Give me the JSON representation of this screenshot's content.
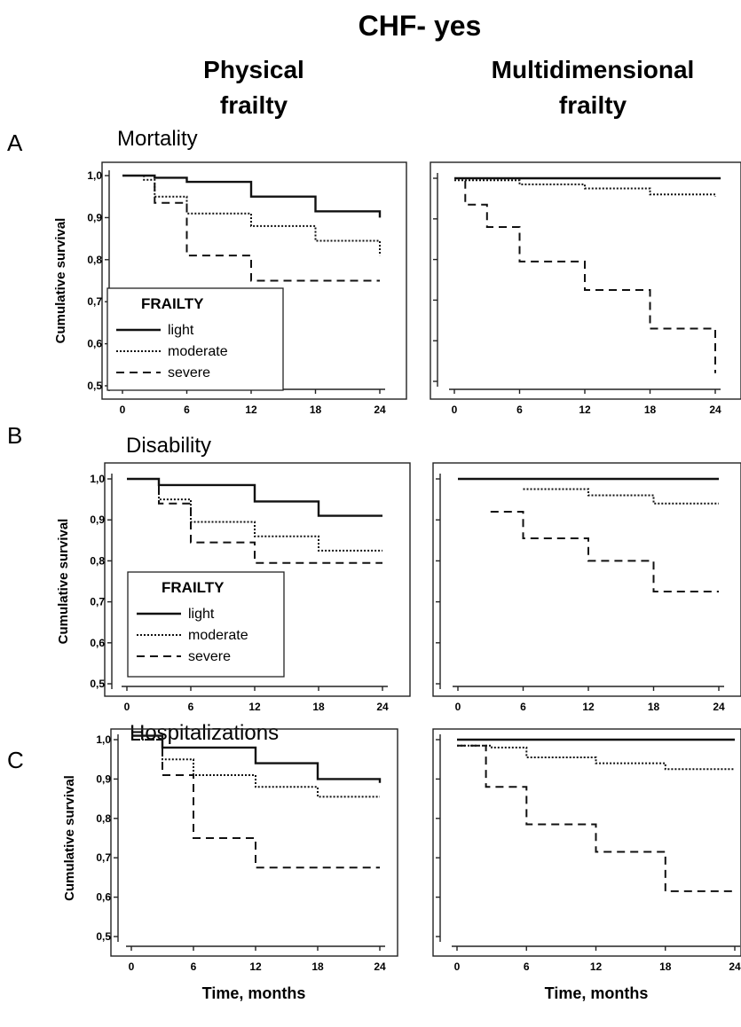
{
  "title": "CHF- yes",
  "columns": [
    {
      "heading": [
        "Physical",
        "frailty"
      ]
    },
    {
      "heading": [
        "Multidimensional",
        "frailty"
      ]
    }
  ],
  "row_labels": [
    {
      "letter": "A",
      "name": "Mortality"
    },
    {
      "letter": "B",
      "name": "Disability"
    },
    {
      "letter": "C",
      "name": "Hospitalizations"
    }
  ],
  "legend": {
    "title": "FRAILTY",
    "items": [
      "light",
      "moderate",
      "severe"
    ]
  },
  "ylabel": "Cumulative survival",
  "xlabel": "Time, months",
  "x_ticks": [
    "0",
    "6",
    "12",
    "18",
    "24"
  ],
  "y_ticks": [
    "0,5",
    "0,6",
    "0,7",
    "0,8",
    "0,9",
    "1,0"
  ],
  "chart_data": [
    {
      "type": "line",
      "title": "Mortality",
      "xlabel": "",
      "ylabel": "Cumulative survival",
      "xlim": [
        0,
        24
      ],
      "ylim": [
        0.5,
        1.0
      ],
      "step": true,
      "legend": "bottom-left",
      "series": [
        {
          "name": "light",
          "style": "solid",
          "x": [
            0,
            3,
            6,
            12,
            18,
            24
          ],
          "y": [
            1.0,
            0.995,
            0.985,
            0.95,
            0.915,
            0.9
          ]
        },
        {
          "name": "moderate",
          "style": "dotted",
          "x": [
            0,
            2,
            3,
            6,
            12,
            18,
            24
          ],
          "y": [
            1.0,
            0.99,
            0.95,
            0.91,
            0.88,
            0.845,
            0.81
          ]
        },
        {
          "name": "severe",
          "style": "dashed",
          "x": [
            0,
            3,
            6,
            12,
            24
          ],
          "y": [
            1.0,
            0.935,
            0.81,
            0.75,
            0.75
          ]
        }
      ]
    },
    {
      "type": "line",
      "title": "Mortality",
      "xlabel": "",
      "ylabel": "",
      "xlim": [
        0,
        24
      ],
      "ylim": [
        0.5,
        1.0
      ],
      "step": true,
      "series": [
        {
          "name": "light",
          "style": "solid",
          "x": [
            0,
            24.5
          ],
          "y": [
            1.0,
            1.0
          ]
        },
        {
          "name": "moderate",
          "style": "dotted",
          "x": [
            0,
            6,
            12,
            18,
            24
          ],
          "y": [
            0.995,
            0.985,
            0.975,
            0.96,
            0.955
          ]
        },
        {
          "name": "severe",
          "style": "dashed",
          "x": [
            0,
            1,
            3,
            6,
            12,
            18,
            24
          ],
          "y": [
            1.0,
            0.935,
            0.88,
            0.795,
            0.725,
            0.63,
            0.52
          ]
        }
      ]
    },
    {
      "type": "line",
      "title": "Disability",
      "xlabel": "",
      "ylabel": "Cumulative survival",
      "xlim": [
        0,
        24
      ],
      "ylim": [
        0.5,
        1.0
      ],
      "step": true,
      "legend": "bottom-left",
      "series": [
        {
          "name": "light",
          "style": "solid",
          "x": [
            0,
            3,
            12,
            18,
            24
          ],
          "y": [
            1.0,
            0.985,
            0.945,
            0.91,
            0.91
          ]
        },
        {
          "name": "moderate",
          "style": "dotted",
          "x": [
            0,
            3,
            6,
            12,
            18,
            24
          ],
          "y": [
            1.0,
            0.95,
            0.895,
            0.86,
            0.825,
            0.825
          ]
        },
        {
          "name": "severe",
          "style": "dashed",
          "x": [
            0,
            3,
            6,
            12,
            24
          ],
          "y": [
            1.0,
            0.94,
            0.845,
            0.795,
            0.795
          ]
        }
      ]
    },
    {
      "type": "line",
      "title": "Disability",
      "xlabel": "",
      "ylabel": "",
      "xlim": [
        0,
        24
      ],
      "ylim": [
        0.5,
        1.0
      ],
      "step": true,
      "series": [
        {
          "name": "light",
          "style": "solid",
          "x": [
            0,
            24
          ],
          "y": [
            1.0,
            1.0
          ]
        },
        {
          "name": "moderate",
          "style": "dotted",
          "x": [
            6,
            12,
            18,
            24
          ],
          "y": [
            0.975,
            0.96,
            0.94,
            0.94
          ]
        },
        {
          "name": "severe",
          "style": "dashed",
          "x": [
            3,
            6,
            12,
            18,
            24
          ],
          "y": [
            0.92,
            0.855,
            0.8,
            0.725,
            0.725
          ]
        }
      ]
    },
    {
      "type": "line",
      "title": "Hospitalizations",
      "xlabel": "Time, months",
      "ylabel": "Cumulative survival",
      "xlim": [
        0,
        24
      ],
      "ylim": [
        0.5,
        1.0
      ],
      "step": true,
      "series": [
        {
          "name": "light",
          "style": "solid",
          "x": [
            0,
            3,
            12,
            18,
            24
          ],
          "y": [
            1.01,
            0.98,
            0.94,
            0.9,
            0.89
          ]
        },
        {
          "name": "moderate",
          "style": "dotted",
          "x": [
            0,
            3,
            6,
            12,
            18,
            24
          ],
          "y": [
            1.0,
            0.95,
            0.91,
            0.88,
            0.855,
            0.855
          ]
        },
        {
          "name": "severe",
          "style": "dashed",
          "x": [
            0,
            3,
            6,
            12,
            24
          ],
          "y": [
            1.0,
            0.91,
            0.75,
            0.675,
            0.675
          ]
        }
      ]
    },
    {
      "type": "line",
      "title": "Hospitalizations",
      "xlabel": "Time, months",
      "ylabel": "",
      "xlim": [
        0,
        24
      ],
      "ylim": [
        0.5,
        1.0
      ],
      "step": true,
      "series": [
        {
          "name": "light",
          "style": "solid",
          "x": [
            0,
            24
          ],
          "y": [
            1.0,
            1.0
          ]
        },
        {
          "name": "moderate",
          "style": "dotted",
          "x": [
            0,
            3,
            6,
            12,
            18,
            24
          ],
          "y": [
            0.985,
            0.98,
            0.955,
            0.94,
            0.925,
            0.925
          ]
        },
        {
          "name": "severe",
          "style": "dashed",
          "x": [
            0,
            2.5,
            6,
            12,
            18,
            24
          ],
          "y": [
            0.985,
            0.88,
            0.785,
            0.715,
            0.615,
            0.615
          ]
        }
      ]
    }
  ]
}
